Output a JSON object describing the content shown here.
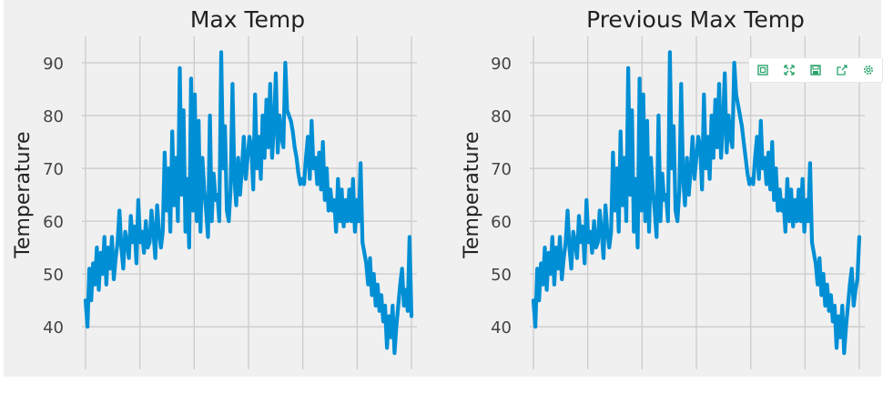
{
  "chart_data": [
    {
      "type": "line",
      "title": "Max Temp",
      "xlabel": "",
      "ylabel": "Temperature",
      "ylim": [
        34,
        95
      ],
      "yticks": [
        40,
        50,
        60,
        70,
        80,
        90
      ],
      "grid": true,
      "series": [
        {
          "color": "#008fd5",
          "values": [
            45,
            40,
            51,
            45,
            52,
            48,
            55,
            47,
            54,
            50,
            57,
            48,
            55,
            51,
            57,
            49,
            53,
            56,
            62,
            55,
            51,
            58,
            56,
            53,
            61,
            56,
            59,
            52,
            64,
            56,
            58,
            54,
            60,
            55,
            56,
            62,
            58,
            53,
            63,
            58,
            55,
            58,
            73,
            62,
            70,
            58,
            77,
            63,
            72,
            60,
            89,
            65,
            81,
            58,
            68,
            55,
            87,
            62,
            84,
            60,
            79,
            58,
            72,
            66,
            62,
            57,
            80,
            60,
            69,
            64,
            65,
            60,
            92,
            70,
            78,
            62,
            60,
            66,
            86,
            68,
            63,
            72,
            65,
            70,
            76,
            68,
            72,
            76,
            74,
            66,
            84,
            70,
            76,
            68,
            80,
            72,
            83,
            74,
            86,
            72,
            78,
            88,
            73,
            80,
            76,
            74,
            90,
            81,
            80,
            79,
            77,
            74,
            72,
            69,
            67,
            68,
            67,
            72,
            76,
            68,
            79,
            70,
            72,
            67,
            73,
            66,
            75,
            64,
            70,
            62,
            66,
            62,
            64,
            58,
            68,
            60,
            66,
            59,
            64,
            60,
            66,
            60,
            68,
            58,
            64,
            60,
            71,
            56,
            54,
            52,
            48,
            53,
            46,
            50,
            44,
            48,
            43,
            46,
            41,
            44,
            36,
            42,
            38,
            44,
            35,
            40,
            44,
            48,
            51,
            44,
            47,
            43,
            57,
            42
          ]
        }
      ]
    },
    {
      "type": "line",
      "title": "Previous Max Temp",
      "xlabel": "",
      "ylabel": "Temperature",
      "ylim": [
        34,
        95
      ],
      "yticks": [
        40,
        50,
        60,
        70,
        80,
        90
      ],
      "grid": true,
      "series": [
        {
          "color": "#008fd5",
          "values": [
            45,
            40,
            51,
            45,
            52,
            48,
            55,
            47,
            54,
            50,
            57,
            48,
            55,
            51,
            57,
            49,
            53,
            56,
            62,
            55,
            51,
            58,
            56,
            53,
            61,
            56,
            59,
            52,
            64,
            56,
            58,
            54,
            60,
            55,
            56,
            62,
            58,
            53,
            63,
            58,
            55,
            58,
            73,
            62,
            70,
            58,
            77,
            63,
            72,
            60,
            89,
            65,
            81,
            58,
            68,
            55,
            87,
            62,
            84,
            60,
            79,
            58,
            72,
            66,
            62,
            57,
            80,
            60,
            69,
            64,
            65,
            60,
            92,
            70,
            78,
            62,
            60,
            66,
            86,
            68,
            63,
            72,
            65,
            70,
            76,
            68,
            72,
            76,
            74,
            66,
            84,
            70,
            76,
            68,
            80,
            72,
            83,
            74,
            86,
            72,
            78,
            88,
            73,
            80,
            76,
            74,
            90,
            84,
            82,
            80,
            78,
            75,
            72,
            69,
            67,
            68,
            67,
            72,
            76,
            68,
            79,
            70,
            72,
            67,
            73,
            66,
            75,
            64,
            70,
            62,
            66,
            62,
            64,
            58,
            68,
            60,
            66,
            59,
            64,
            60,
            66,
            60,
            68,
            58,
            64,
            60,
            71,
            56,
            54,
            52,
            48,
            53,
            46,
            50,
            44,
            48,
            43,
            46,
            41,
            44,
            36,
            42,
            38,
            44,
            35,
            40,
            44,
            48,
            51,
            44,
            47,
            49,
            57
          ]
        }
      ]
    }
  ],
  "toolbar": {
    "buttons": [
      {
        "icon": "zoom-box-icon"
      },
      {
        "icon": "fit-expand-icon"
      },
      {
        "icon": "save-icon"
      },
      {
        "icon": "share-icon"
      },
      {
        "icon": "gear-icon"
      }
    ]
  }
}
